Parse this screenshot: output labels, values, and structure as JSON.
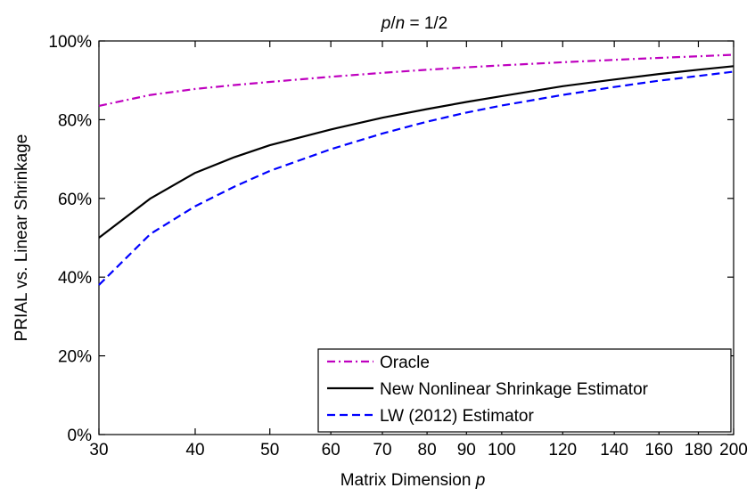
{
  "chart_data": {
    "type": "line",
    "title": "p/n  = 1/2",
    "xlabel": "Matrix Dimension  p",
    "ylabel": "PRIAL vs. Linear Shrinkage",
    "xlim": [
      30,
      200
    ],
    "ylim": [
      0,
      100
    ],
    "x_scale": "log",
    "x_ticks": [
      30,
      40,
      50,
      60,
      70,
      80,
      90,
      100,
      120,
      140,
      160,
      180,
      200
    ],
    "y_ticks": [
      0,
      20,
      40,
      60,
      80,
      100
    ],
    "y_tick_labels": [
      "0%",
      "20%",
      "40%",
      "60%",
      "80%",
      "100%"
    ],
    "grid": false,
    "legend_position": "bottom-right",
    "x": [
      30,
      35,
      40,
      45,
      50,
      60,
      70,
      80,
      90,
      100,
      120,
      140,
      160,
      180,
      200
    ],
    "series": [
      {
        "name": "Oracle",
        "color": "#bf00bf",
        "style": "dashdot",
        "values": [
          83.5,
          86.3,
          87.8,
          88.8,
          89.6,
          90.9,
          91.9,
          92.7,
          93.3,
          93.8,
          94.6,
          95.2,
          95.7,
          96.1,
          96.5
        ]
      },
      {
        "name": "New Nonlinear Shrinkage Estimator",
        "color": "#000000",
        "style": "solid",
        "values": [
          50,
          60,
          66.5,
          70.5,
          73.5,
          77.5,
          80.5,
          82.7,
          84.5,
          86,
          88.5,
          90.2,
          91.6,
          92.7,
          93.6
        ]
      },
      {
        "name": "LW (2012) Estimator",
        "color": "#0000ff",
        "style": "dashed",
        "values": [
          38,
          51,
          58,
          63,
          67,
          72.5,
          76.5,
          79.5,
          81.8,
          83.6,
          86.3,
          88.3,
          89.9,
          91.1,
          92.2
        ]
      }
    ]
  }
}
